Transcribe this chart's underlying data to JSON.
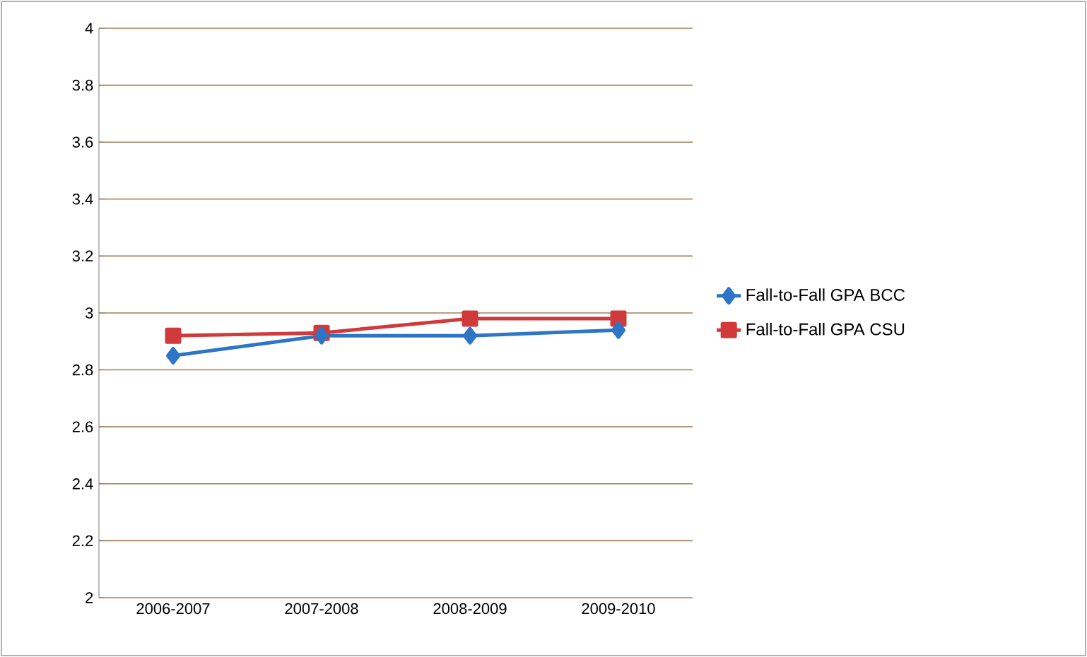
{
  "chart_data": {
    "type": "line",
    "categories": [
      "2006-2007",
      "2007-2008",
      "2008-2009",
      "2009-2010"
    ],
    "series": [
      {
        "name": "Fall-to-Fall GPA   BCC",
        "color": "#2e75c6",
        "marker": "diamond",
        "values": [
          2.85,
          2.92,
          2.92,
          2.94
        ]
      },
      {
        "name": "Fall-to-Fall GPA   CSU",
        "color": "#d03a3a",
        "marker": "square",
        "values": [
          2.92,
          2.93,
          2.98,
          2.98
        ]
      }
    ],
    "ylim": [
      2,
      4
    ],
    "yticks": [
      2,
      2.2,
      2.4,
      2.6,
      2.8,
      3,
      3.2,
      3.4,
      3.6,
      3.8,
      4
    ],
    "grid": "y",
    "legend": "right"
  }
}
